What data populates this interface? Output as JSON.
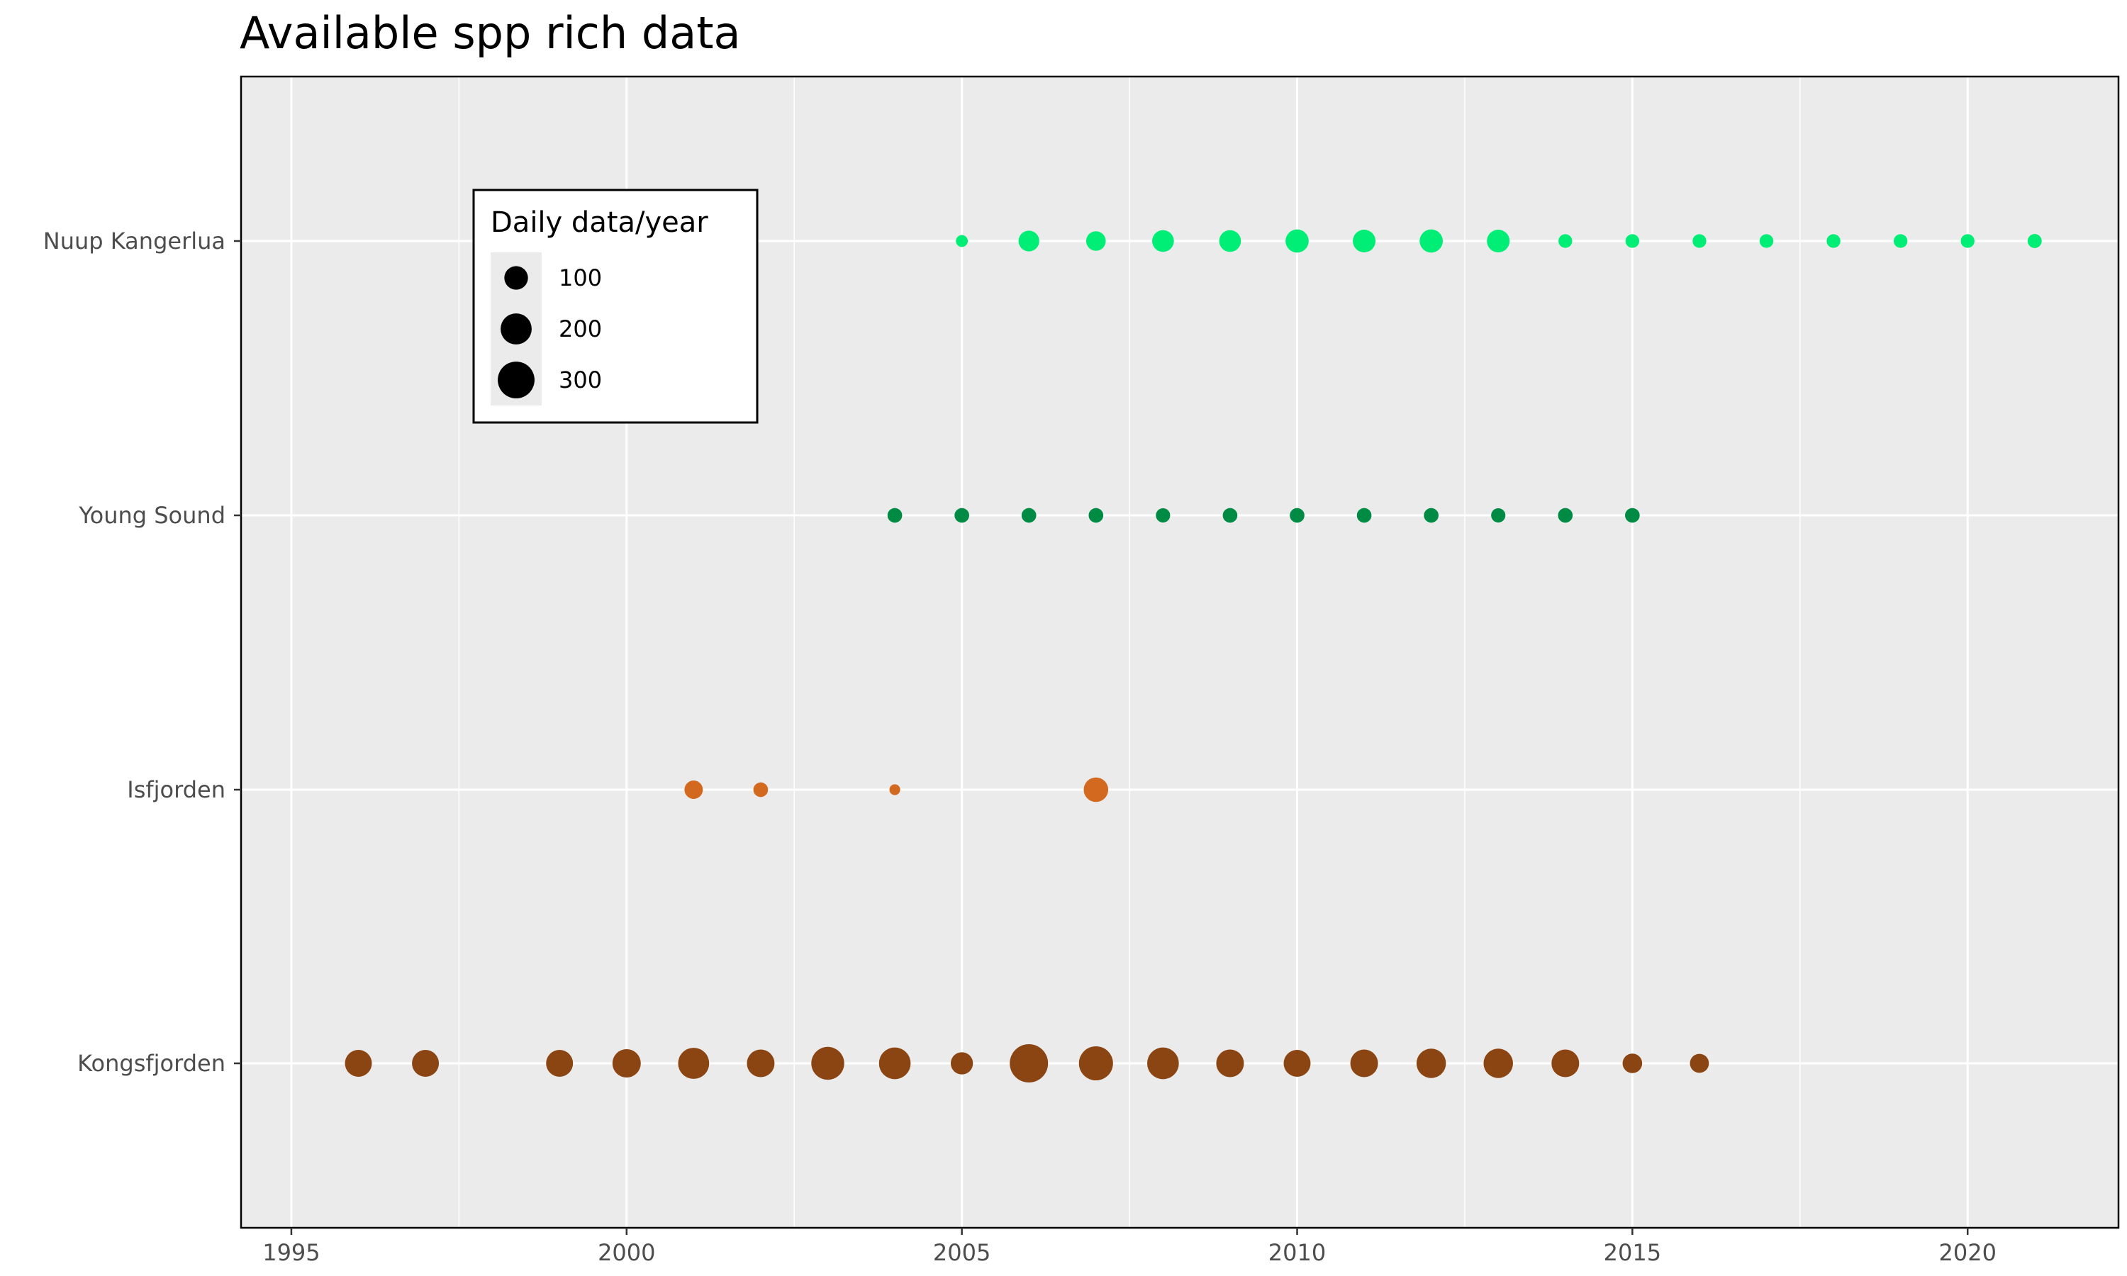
{
  "chart_data": {
    "type": "scatter",
    "title": "Available spp rich data",
    "xlabel": "",
    "ylabel": "",
    "xlim": [
      1994.25,
      2022.25
    ],
    "x_ticks": [
      1995,
      2000,
      2005,
      2010,
      2015,
      2020
    ],
    "x_tick_labels": [
      "1995",
      "2000",
      "2005",
      "2010",
      "2015",
      "2020"
    ],
    "categories": [
      "Kongsfjorden",
      "Isfjorden",
      "Young Sound",
      "Nuup Kangerlua"
    ],
    "grid": true,
    "size_legend": {
      "title": "Daily data/year",
      "placement": "top-left",
      "entries": [
        {
          "value": 100,
          "label": "100"
        },
        {
          "value": 200,
          "label": "200"
        },
        {
          "value": 300,
          "label": "300"
        }
      ]
    },
    "series": [
      {
        "site": "Nuup Kangerlua",
        "color": "#00ee76",
        "points": [
          {
            "x": 2005,
            "size": 12
          },
          {
            "x": 2006,
            "size": 70
          },
          {
            "x": 2007,
            "size": 60
          },
          {
            "x": 2008,
            "size": 80
          },
          {
            "x": 2009,
            "size": 80
          },
          {
            "x": 2010,
            "size": 95
          },
          {
            "x": 2011,
            "size": 90
          },
          {
            "x": 2012,
            "size": 95
          },
          {
            "x": 2013,
            "size": 90
          },
          {
            "x": 2014,
            "size": 20
          },
          {
            "x": 2015,
            "size": 20
          },
          {
            "x": 2016,
            "size": 20
          },
          {
            "x": 2017,
            "size": 20
          },
          {
            "x": 2018,
            "size": 20
          },
          {
            "x": 2019,
            "size": 20
          },
          {
            "x": 2020,
            "size": 20
          },
          {
            "x": 2021,
            "size": 22
          }
        ]
      },
      {
        "site": "Young Sound",
        "color": "#008b45",
        "points": [
          {
            "x": 2004,
            "size": 25
          },
          {
            "x": 2005,
            "size": 25
          },
          {
            "x": 2006,
            "size": 25
          },
          {
            "x": 2007,
            "size": 25
          },
          {
            "x": 2008,
            "size": 23
          },
          {
            "x": 2009,
            "size": 25
          },
          {
            "x": 2010,
            "size": 25
          },
          {
            "x": 2011,
            "size": 25
          },
          {
            "x": 2012,
            "size": 25
          },
          {
            "x": 2013,
            "size": 23
          },
          {
            "x": 2014,
            "size": 25
          },
          {
            "x": 2015,
            "size": 25
          }
        ]
      },
      {
        "site": "Isfjorden",
        "color": "#d2691e",
        "points": [
          {
            "x": 2001,
            "size": 50
          },
          {
            "x": 2002,
            "size": 25
          },
          {
            "x": 2004,
            "size": 8
          },
          {
            "x": 2007,
            "size": 110
          }
        ]
      },
      {
        "site": "Kongsfjorden",
        "color": "#8b4513",
        "points": [
          {
            "x": 1996,
            "size": 140
          },
          {
            "x": 1997,
            "size": 140
          },
          {
            "x": 1999,
            "size": 140
          },
          {
            "x": 2000,
            "size": 160
          },
          {
            "x": 2001,
            "size": 200
          },
          {
            "x": 2002,
            "size": 150
          },
          {
            "x": 2003,
            "size": 230
          },
          {
            "x": 2004,
            "size": 210
          },
          {
            "x": 2005,
            "size": 85
          },
          {
            "x": 2006,
            "size": 330
          },
          {
            "x": 2007,
            "size": 250
          },
          {
            "x": 2008,
            "size": 210
          },
          {
            "x": 2009,
            "size": 150
          },
          {
            "x": 2010,
            "size": 140
          },
          {
            "x": 2011,
            "size": 150
          },
          {
            "x": 2012,
            "size": 175
          },
          {
            "x": 2013,
            "size": 175
          },
          {
            "x": 2014,
            "size": 150
          },
          {
            "x": 2015,
            "size": 60
          },
          {
            "x": 2016,
            "size": 55
          }
        ]
      }
    ]
  }
}
